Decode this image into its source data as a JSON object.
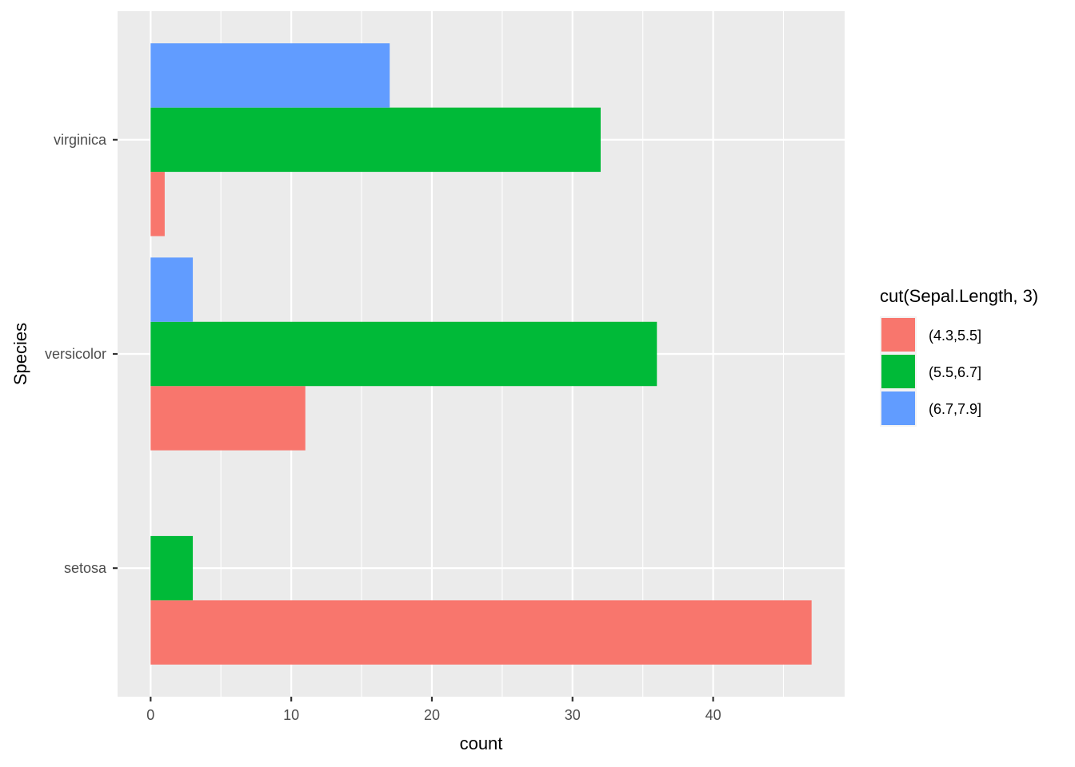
{
  "chart_data": {
    "type": "bar",
    "orientation": "horizontal",
    "categories": [
      "setosa",
      "versicolor",
      "virginica"
    ],
    "series": [
      {
        "name": "(4.3,5.5]",
        "color": "#F8766D",
        "values": [
          47,
          11,
          1
        ]
      },
      {
        "name": "(5.5,6.7]",
        "color": "#00BA38",
        "values": [
          3,
          36,
          32
        ]
      },
      {
        "name": "(6.7,7.9]",
        "color": "#619CFF",
        "values": [
          0,
          3,
          17
        ]
      }
    ],
    "xlabel": "count",
    "ylabel": "Species",
    "xlim": [
      -2.35,
      49.35
    ],
    "x_ticks": [
      0,
      10,
      20,
      30,
      40
    ],
    "x_tick_labels": [
      "0",
      "10",
      "20",
      "30",
      "40"
    ],
    "grid": true,
    "panel_background": "#EBEBEB",
    "grid_color": "#FFFFFF",
    "legend": {
      "title": "cut(Sepal.Length, 3)",
      "position": "right"
    }
  }
}
